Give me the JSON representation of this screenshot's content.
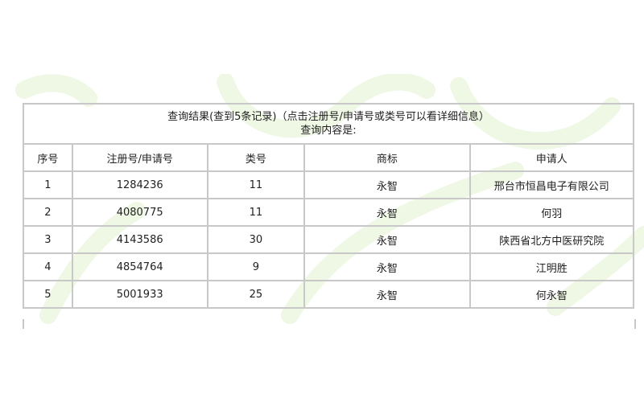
{
  "caption": {
    "line1": "查询结果(查到5条记录)（点击注册号/申请号或类号可以看详细信息）",
    "line2": "查询内容是:"
  },
  "columns": [
    "序号",
    "注册号/申请号",
    "类号",
    "商标",
    "申请人"
  ],
  "rows": [
    [
      "1",
      "1284236",
      "11",
      "永智",
      "邢台市恒昌电子有限公司"
    ],
    [
      "2",
      "4080775",
      "11",
      "永智",
      "何羽"
    ],
    [
      "3",
      "4143586",
      "30",
      "永智",
      "陕西省北方中医研究院"
    ],
    [
      "4",
      "4854764",
      "9",
      "永智",
      "江明胜"
    ],
    [
      "5",
      "5001933",
      "25",
      "永智",
      "何永智"
    ]
  ],
  "colors": {
    "border": "#c8c8c8",
    "watermark": "#eef8e4"
  }
}
